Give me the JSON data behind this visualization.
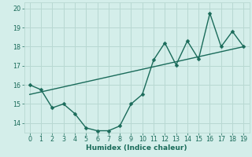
{
  "xlabel": "Humidex (Indice chaleur)",
  "background_color": "#d4eeea",
  "grid_color": "#b8d8d2",
  "line_color": "#1a6b5a",
  "xlim": [
    -0.5,
    19.5
  ],
  "ylim": [
    13.5,
    20.3
  ],
  "yticks": [
    14,
    15,
    16,
    17,
    18,
    19,
    20
  ],
  "xticks": [
    0,
    1,
    2,
    3,
    4,
    5,
    6,
    7,
    8,
    9,
    10,
    11,
    12,
    13,
    14,
    15,
    16,
    17,
    18,
    19
  ],
  "scatter_x": [
    0,
    1,
    2,
    3,
    4,
    5,
    6,
    7,
    8,
    9,
    10,
    11,
    12,
    13,
    14,
    15,
    16,
    17,
    18,
    19
  ],
  "scatter_y": [
    16.0,
    15.75,
    14.8,
    15.0,
    14.5,
    13.75,
    13.6,
    13.6,
    13.85,
    15.0,
    15.5,
    17.3,
    18.2,
    17.05,
    18.3,
    17.35,
    19.75,
    18.0,
    18.8,
    18.0
  ],
  "trend_x": [
    0,
    19
  ],
  "trend_y": [
    15.5,
    18.0
  ],
  "marker_size": 2.5,
  "line_width": 1.0,
  "font_size": 6.5,
  "tick_font_size": 5.8
}
